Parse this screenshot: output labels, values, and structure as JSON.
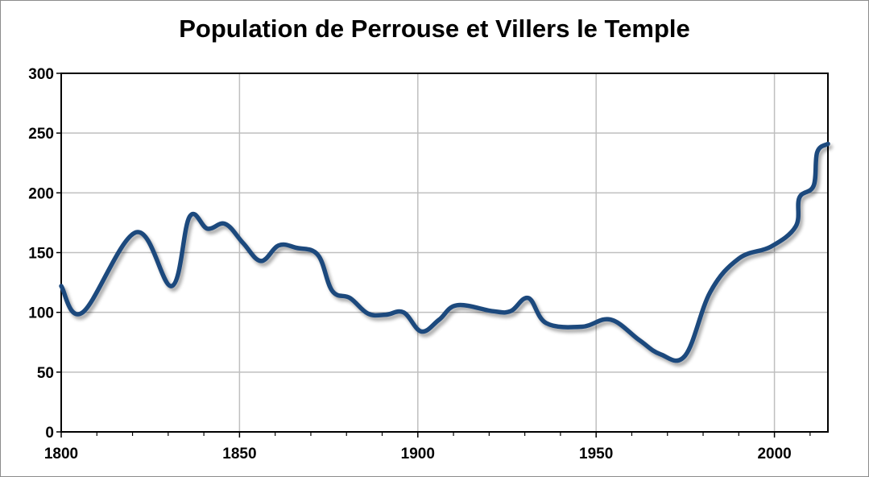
{
  "chart_data": {
    "type": "line",
    "title": "Population de Perrouse et Villers le Temple",
    "xlabel": "",
    "ylabel": "",
    "xlim": [
      1800,
      2015
    ],
    "ylim": [
      0,
      300
    ],
    "x_ticks": [
      1800,
      1850,
      1900,
      1950,
      2000
    ],
    "y_ticks": [
      0,
      50,
      100,
      150,
      200,
      250,
      300
    ],
    "grid": true,
    "legend": "none",
    "series": [
      {
        "color": "#1f497d",
        "x": [
          1800,
          1806,
          1821,
          1831,
          1836,
          1841,
          1846,
          1851,
          1856,
          1861,
          1866,
          1872,
          1876,
          1881,
          1886,
          1891,
          1896,
          1901,
          1906,
          1911,
          1921,
          1926,
          1931,
          1936,
          1946,
          1954,
          1962,
          1968,
          1975,
          1982,
          1990,
          1999,
          2006,
          2007,
          2011,
          2012,
          2015
        ],
        "y": [
          122,
          100,
          167,
          122,
          180,
          170,
          174,
          158,
          143,
          156,
          154,
          148,
          118,
          112,
          99,
          98,
          100,
          84,
          94,
          106,
          101,
          101,
          112,
          91,
          88,
          94,
          77,
          65,
          64,
          117,
          145,
          155,
          172,
          196,
          206,
          234,
          241
        ]
      }
    ]
  }
}
